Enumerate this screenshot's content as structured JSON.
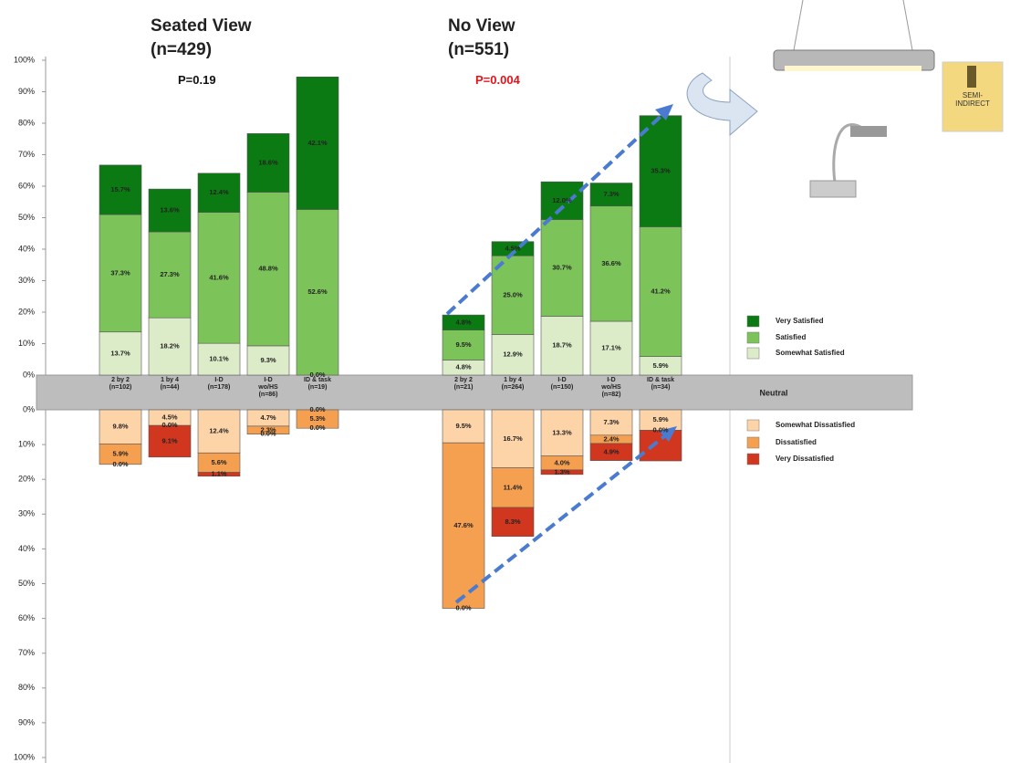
{
  "chart_data": {
    "type": "diverging_stacked_bar",
    "groups": [
      {
        "title": "Seated View",
        "subtitle": "(n=429)",
        "annotation": "P=0.19",
        "annotation_color": "#111111"
      },
      {
        "title": "No View",
        "subtitle": "(n=551)",
        "annotation": "P=0.004",
        "annotation_color": "#e8121b"
      }
    ],
    "categories": [
      "2 by 2\n(n=102)",
      "1 by 4\n(n=44)",
      "I-D\n(n=178)",
      "I-D\nwo/HS\n(n=86)",
      "ID & task\n(n=19)",
      "2 by 2\n(n=21)",
      "1 by 4\n(n=264)",
      "I-D\n(n=150)",
      "I-D\nwo/HS\n(n=82)",
      "ID & task\n(n=34)"
    ],
    "series": [
      {
        "name": "Very Satisfied",
        "color": "#0b7a13",
        "direction": "up",
        "values": [
          15.7,
          13.6,
          12.4,
          18.6,
          42.1,
          4.8,
          4.5,
          12.0,
          7.3,
          35.3
        ],
        "value_labels": [
          "15.7%",
          "13.6%",
          "12.4%",
          "18.6%",
          "42.1%",
          "4.8%",
          "4.5%",
          "12.0%",
          "7.3%",
          "35.3%"
        ]
      },
      {
        "name": "Satisfied",
        "color": "#7cc35a",
        "direction": "up",
        "values": [
          37.3,
          27.3,
          41.6,
          48.8,
          52.6,
          9.5,
          25.0,
          30.7,
          36.6,
          41.2
        ],
        "value_labels": [
          "37.3%",
          "27.3%",
          "41.6%",
          "48.8%",
          "52.6%",
          "9.5%",
          "25.0%",
          "30.7%",
          "36.6%",
          "41.2%"
        ]
      },
      {
        "name": "Somewhat Satisfied",
        "color": "#dcebc8",
        "direction": "up",
        "values": [
          13.7,
          18.2,
          10.1,
          9.3,
          0.0,
          4.8,
          12.9,
          18.7,
          17.1,
          5.9
        ],
        "value_labels": [
          "13.7%",
          "18.2%",
          "10.1%",
          "9.3%",
          "0.0%",
          "4.8%",
          "12.9%",
          "18.7%",
          "17.1%",
          "5.9%"
        ]
      },
      {
        "name": "Somewhat Dissatisfied",
        "color": "#fdd3a8",
        "direction": "down",
        "values": [
          9.8,
          4.5,
          12.4,
          4.7,
          0.0,
          9.5,
          16.7,
          13.3,
          7.3,
          5.9
        ],
        "value_labels": [
          "9.8%",
          "4.5%",
          "12.4%",
          "4.7%",
          "0.0%",
          "9.5%",
          "16.7%",
          "13.3%",
          "7.3%",
          "5.9%"
        ]
      },
      {
        "name": "Dissatisfied",
        "color": "#f5a050",
        "direction": "down",
        "values": [
          5.9,
          0.0,
          5.6,
          2.3,
          5.3,
          47.6,
          11.4,
          4.0,
          2.4,
          0.0
        ],
        "value_labels": [
          "5.9%",
          "0.0%",
          "5.6%",
          "2.3%",
          "5.3%",
          "47.6%",
          "11.4%",
          "4.0%",
          "2.4%",
          "0.0%"
        ]
      },
      {
        "name": "Very Dissatisfied",
        "color": "#d1371f",
        "direction": "down",
        "values": [
          0.0,
          9.1,
          1.1,
          0.0,
          0.0,
          0.0,
          8.3,
          1.3,
          4.9,
          8.8
        ],
        "value_labels": [
          "0.0%",
          "9.1%",
          "1.1%",
          "0.0%",
          "0.0%",
          "0.0%",
          "8.3%",
          "1.3%",
          "4.9%",
          null
        ]
      }
    ],
    "neutral_label": "Neutral",
    "ylim": [
      0,
      100
    ],
    "yticks": [
      {
        "value": 0,
        "label": "0%"
      },
      {
        "value": 10,
        "label": "10%"
      },
      {
        "value": 20,
        "label": "20%"
      },
      {
        "value": 30,
        "label": "30%"
      },
      {
        "value": 40,
        "label": "40%"
      },
      {
        "value": 50,
        "label": "50%"
      },
      {
        "value": 60,
        "label": "60%"
      },
      {
        "value": 70,
        "label": "70%"
      },
      {
        "value": 80,
        "label": "80%"
      },
      {
        "value": 90,
        "label": "90%"
      },
      {
        "value": 100,
        "label": "100%"
      }
    ],
    "y2lim": [
      0,
      100
    ],
    "y2ticks": [
      {
        "value": 0,
        "label": "0%"
      },
      {
        "value": 10,
        "label": "10%"
      },
      {
        "value": 20,
        "label": "20%"
      },
      {
        "value": 30,
        "label": "30%"
      },
      {
        "value": 40,
        "label": "40%"
      },
      {
        "value": 50,
        "label": "50%"
      },
      {
        "value": 60,
        "label": "60%"
      },
      {
        "value": 70,
        "label": "70%"
      },
      {
        "value": 80,
        "label": "80%"
      },
      {
        "value": 90,
        "label": "90%"
      },
      {
        "value": 100,
        "label": "100%"
      }
    ],
    "icon_label": "SEMI-\nINDIRECT"
  }
}
